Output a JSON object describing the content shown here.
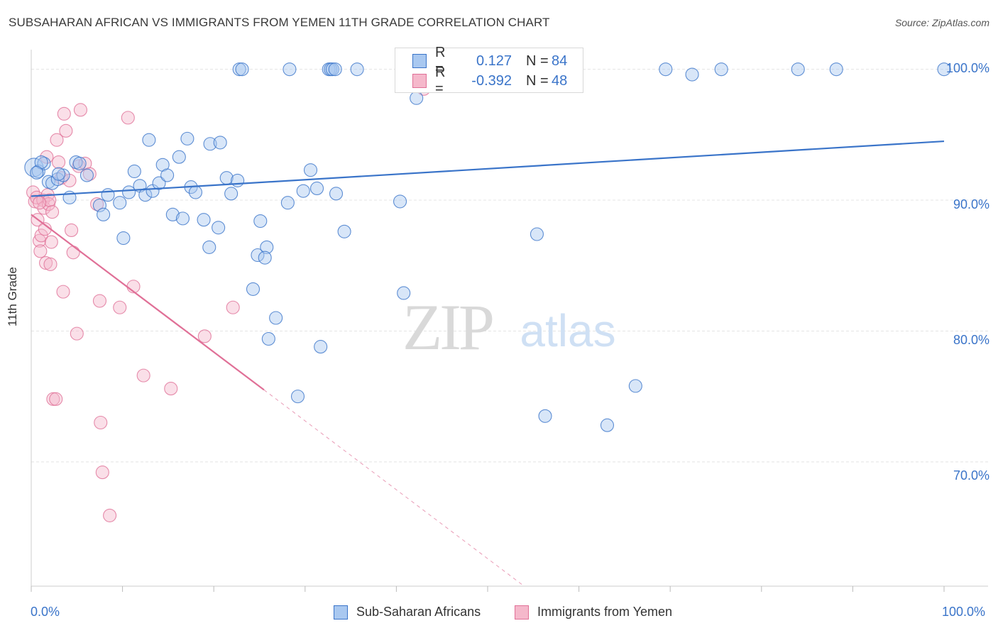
{
  "title": "SUBSAHARAN AFRICAN VS IMMIGRANTS FROM YEMEN 11TH GRADE CORRELATION CHART",
  "source": "Source: ZipAtlas.com",
  "watermark": {
    "zip": "ZIP",
    "atlas": "atlas"
  },
  "colors": {
    "blue": "#3a74c9",
    "blue_fill": "#a9c8f0",
    "pink": "#e07097",
    "pink_fill": "#f5b8cb",
    "grid": "#e4e4e4"
  },
  "legend_top": [
    {
      "r_label": "R =",
      "r_value": "0.127",
      "n_label": "N =",
      "n_value": "84"
    },
    {
      "r_label": "R =",
      "r_value": "-0.392",
      "n_label": "N =",
      "n_value": "48"
    }
  ],
  "legend_bottom": [
    "Sub-Saharan Africans",
    "Immigrants from Yemen"
  ],
  "chart_data": {
    "type": "scatter",
    "ylabel": "11th Grade",
    "xlabel": "",
    "x_ticks": [
      "0.0%",
      "100.0%"
    ],
    "y_ticks": [
      "100.0%",
      "90.0%",
      "80.0%",
      "70.0%"
    ],
    "xlim": [
      0,
      100
    ],
    "ylim": [
      60.5,
      101.5
    ],
    "grid": true,
    "legend_placement": "bottom",
    "series": [
      {
        "name": "Sub-Saharan Africans",
        "color": "#3a74c9",
        "trend": {
          "x": [
            0,
            100
          ],
          "y": [
            90.3,
            94.5
          ],
          "r": 0.127,
          "n": 84
        },
        "points": [
          [
            0.3,
            92.5
          ],
          [
            0.8,
            92.2
          ],
          [
            1.4,
            92.8
          ],
          [
            1.9,
            91.4
          ],
          [
            2.3,
            91.3
          ],
          [
            2.9,
            91.6
          ],
          [
            3.5,
            91.9
          ],
          [
            4.2,
            90.2
          ],
          [
            4.9,
            92.9
          ],
          [
            5.3,
            92.8
          ],
          [
            6.1,
            91.9
          ],
          [
            7.5,
            89.6
          ],
          [
            7.9,
            88.9
          ],
          [
            8.4,
            90.4
          ],
          [
            9.7,
            89.8
          ],
          [
            10.1,
            87.1
          ],
          [
            10.7,
            90.6
          ],
          [
            11.3,
            92.2
          ],
          [
            11.9,
            91.1
          ],
          [
            12.5,
            90.4
          ],
          [
            12.9,
            94.6
          ],
          [
            13.3,
            90.7
          ],
          [
            14.0,
            91.3
          ],
          [
            14.4,
            92.7
          ],
          [
            14.9,
            91.9
          ],
          [
            15.5,
            88.9
          ],
          [
            16.2,
            93.3
          ],
          [
            16.6,
            88.6
          ],
          [
            17.1,
            94.7
          ],
          [
            17.5,
            91.0
          ],
          [
            18.0,
            90.6
          ],
          [
            18.9,
            88.5
          ],
          [
            19.5,
            86.4
          ],
          [
            19.6,
            94.3
          ],
          [
            20.5,
            87.9
          ],
          [
            20.7,
            94.4
          ],
          [
            21.4,
            91.7
          ],
          [
            21.9,
            90.5
          ],
          [
            22.6,
            91.5
          ],
          [
            22.8,
            100.0
          ],
          [
            23.1,
            100.0
          ],
          [
            24.3,
            83.2
          ],
          [
            24.8,
            85.8
          ],
          [
            25.1,
            88.4
          ],
          [
            25.8,
            86.4
          ],
          [
            25.6,
            85.6
          ],
          [
            26.0,
            79.4
          ],
          [
            26.8,
            81.0
          ],
          [
            28.1,
            89.8
          ],
          [
            28.3,
            100.0
          ],
          [
            29.2,
            75.0
          ],
          [
            29.8,
            90.7
          ],
          [
            30.6,
            92.3
          ],
          [
            31.3,
            90.9
          ],
          [
            31.7,
            78.8
          ],
          [
            32.6,
            100.0
          ],
          [
            32.8,
            100.0
          ],
          [
            33.0,
            100.0
          ],
          [
            33.3,
            100.0
          ],
          [
            33.4,
            90.5
          ],
          [
            34.3,
            87.6
          ],
          [
            35.7,
            100.0
          ],
          [
            40.4,
            89.9
          ],
          [
            40.8,
            82.9
          ],
          [
            42.2,
            97.8
          ],
          [
            42.5,
            98.8
          ],
          [
            45.8,
            100.0
          ],
          [
            46.7,
            98.8
          ],
          [
            47.4,
            100.0
          ],
          [
            47.6,
            100.0
          ],
          [
            47.8,
            99.5
          ],
          [
            55.4,
            87.4
          ],
          [
            56.3,
            73.5
          ],
          [
            63.1,
            72.8
          ],
          [
            66.2,
            75.8
          ],
          [
            69.5,
            100.0
          ],
          [
            72.4,
            99.6
          ],
          [
            75.6,
            100.0
          ],
          [
            84.0,
            100.0
          ],
          [
            88.2,
            100.0
          ],
          [
            100.0,
            100.0
          ],
          [
            1.1,
            92.9
          ],
          [
            0.6,
            92.1
          ],
          [
            3.0,
            92.0
          ]
        ]
      },
      {
        "name": "Immigrants from Yemen",
        "color": "#e07097",
        "trend": {
          "x": [
            0,
            25.5
          ],
          "y": [
            88.9,
            75.5
          ],
          "r": -0.392,
          "n": 48,
          "dashed_to_x": 54,
          "dashed_to_y": 60.5
        },
        "points": [
          [
            0.2,
            90.6
          ],
          [
            0.4,
            89.9
          ],
          [
            0.6,
            90.2
          ],
          [
            0.7,
            88.5
          ],
          [
            0.9,
            86.9
          ],
          [
            1.0,
            86.1
          ],
          [
            1.1,
            87.3
          ],
          [
            1.3,
            90.0
          ],
          [
            1.4,
            89.4
          ],
          [
            1.5,
            87.8
          ],
          [
            1.6,
            85.2
          ],
          [
            1.8,
            90.4
          ],
          [
            1.9,
            89.7
          ],
          [
            2.0,
            90.0
          ],
          [
            2.1,
            85.1
          ],
          [
            2.2,
            86.8
          ],
          [
            2.3,
            89.1
          ],
          [
            2.4,
            74.8
          ],
          [
            2.7,
            74.8
          ],
          [
            2.8,
            94.6
          ],
          [
            3.0,
            92.9
          ],
          [
            3.3,
            91.7
          ],
          [
            3.5,
            83.0
          ],
          [
            3.6,
            96.6
          ],
          [
            3.8,
            95.3
          ],
          [
            4.2,
            91.5
          ],
          [
            4.4,
            87.7
          ],
          [
            4.6,
            86.0
          ],
          [
            5.0,
            79.8
          ],
          [
            5.2,
            92.6
          ],
          [
            5.4,
            96.9
          ],
          [
            5.9,
            92.8
          ],
          [
            6.4,
            92.0
          ],
          [
            7.2,
            89.7
          ],
          [
            7.5,
            82.3
          ],
          [
            7.6,
            73.0
          ],
          [
            7.8,
            69.2
          ],
          [
            8.6,
            65.9
          ],
          [
            9.7,
            81.8
          ],
          [
            10.6,
            96.3
          ],
          [
            11.2,
            83.4
          ],
          [
            12.3,
            76.6
          ],
          [
            15.3,
            75.6
          ],
          [
            19.0,
            79.6
          ],
          [
            22.1,
            81.8
          ],
          [
            43.0,
            98.5
          ],
          [
            1.7,
            93.3
          ],
          [
            0.9,
            89.8
          ]
        ]
      }
    ]
  }
}
